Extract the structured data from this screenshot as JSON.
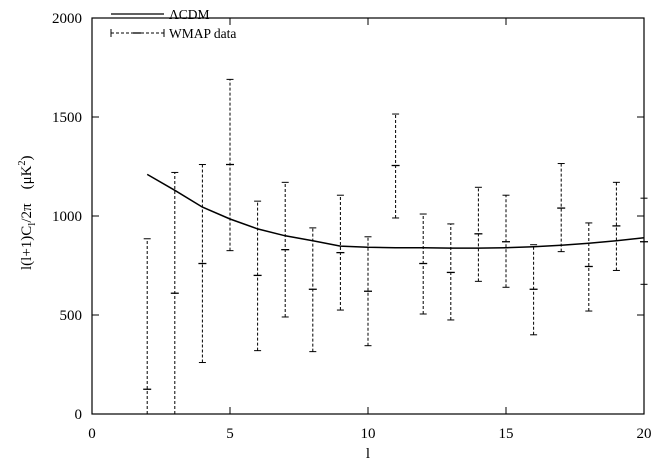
{
  "chart_data": {
    "type": "line",
    "xlabel": "l",
    "ylabel": "l(l+1)C_l/2π   (μK²)",
    "xlim": [
      0,
      20
    ],
    "ylim": [
      0,
      2000
    ],
    "xticks": [
      "0",
      "5",
      "10",
      "15",
      "20"
    ],
    "yticks": [
      "0",
      "500",
      "1000",
      "1500",
      "2000"
    ],
    "grid": false,
    "legend_position": "top-left",
    "series": [
      {
        "name": "ΛCDM",
        "style": "solid line",
        "color": "#000000",
        "x": [
          2,
          3,
          4,
          5,
          6,
          7,
          8,
          9,
          10,
          11,
          12,
          13,
          14,
          15,
          16,
          17,
          18,
          19,
          20
        ],
        "y": [
          1210,
          1130,
          1045,
          985,
          935,
          900,
          875,
          848,
          842,
          840,
          840,
          838,
          838,
          840,
          845,
          852,
          862,
          875,
          890
        ]
      },
      {
        "name": "WMAP data",
        "style": "dashed error bars",
        "color": "#000000",
        "x": [
          2,
          3,
          4,
          5,
          6,
          7,
          8,
          9,
          10,
          11,
          12,
          13,
          14,
          15,
          16,
          17,
          18,
          19,
          20
        ],
        "y": [
          125,
          610,
          760,
          1260,
          700,
          830,
          630,
          815,
          620,
          1255,
          760,
          715,
          910,
          870,
          630,
          1040,
          745,
          950,
          870
        ],
        "y_low": [
          0,
          0,
          260,
          825,
          320,
          490,
          315,
          525,
          345,
          990,
          505,
          475,
          670,
          640,
          400,
          820,
          520,
          725,
          655
        ],
        "y_high": [
          885,
          1220,
          1260,
          1690,
          1075,
          1170,
          940,
          1105,
          895,
          1515,
          1010,
          960,
          1145,
          1105,
          855,
          1265,
          965,
          1170,
          1090
        ]
      }
    ]
  },
  "labels": {
    "xlabel": "l",
    "ylabel_main": "l(l+1)C",
    "ylabel_sub": "l",
    "ylabel_tail": "/2π",
    "ylabel_unit_open": "(μK",
    "ylabel_unit_sup": "2",
    "ylabel_unit_close": ")",
    "legend_model": "ΛCDM",
    "legend_data": "WMAP data"
  }
}
